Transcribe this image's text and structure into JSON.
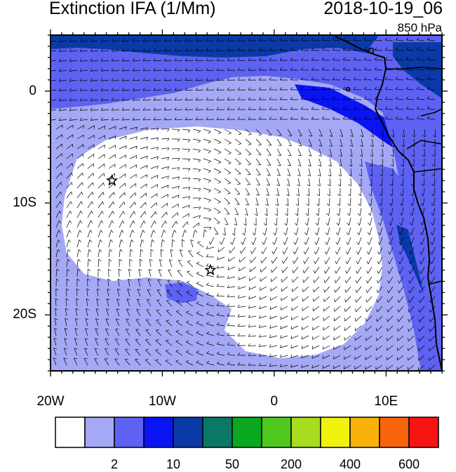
{
  "header": {
    "title": "Extinction IFA (1/Mm)",
    "datetime": "2018-10-19_06",
    "level": "850 hPa"
  },
  "map": {
    "lon_range": [
      -20,
      15
    ],
    "lat_range": [
      -25,
      5
    ],
    "x_ticks": [
      {
        "value": -20,
        "label": "20W"
      },
      {
        "value": -10,
        "label": "10W"
      },
      {
        "value": 0,
        "label": "0"
      },
      {
        "value": 10,
        "label": "10E"
      }
    ],
    "y_ticks": [
      {
        "value": 0,
        "label": "0"
      },
      {
        "value": -10,
        "label": "10S"
      },
      {
        "value": -20,
        "label": "20S"
      }
    ],
    "stars": [
      {
        "lon": -14.5,
        "lat": -8
      },
      {
        "lon": -5.7,
        "lat": -16
      }
    ]
  },
  "colorbar": {
    "colors": [
      "#ffffff",
      "#a5a9f5",
      "#5d62f2",
      "#0a14f2",
      "#0a3aa8",
      "#0a7864",
      "#0aa81e",
      "#4ec81e",
      "#a8dc1e",
      "#f2f20a",
      "#f8b20a",
      "#f8640a",
      "#f81414"
    ],
    "labels": [
      {
        "index": 1,
        "text": "2"
      },
      {
        "index": 3,
        "text": "10"
      },
      {
        "index": 5,
        "text": "50"
      },
      {
        "index": 7,
        "text": "200"
      },
      {
        "index": 9,
        "text": "400"
      },
      {
        "index": 11,
        "text": "600"
      }
    ]
  }
}
